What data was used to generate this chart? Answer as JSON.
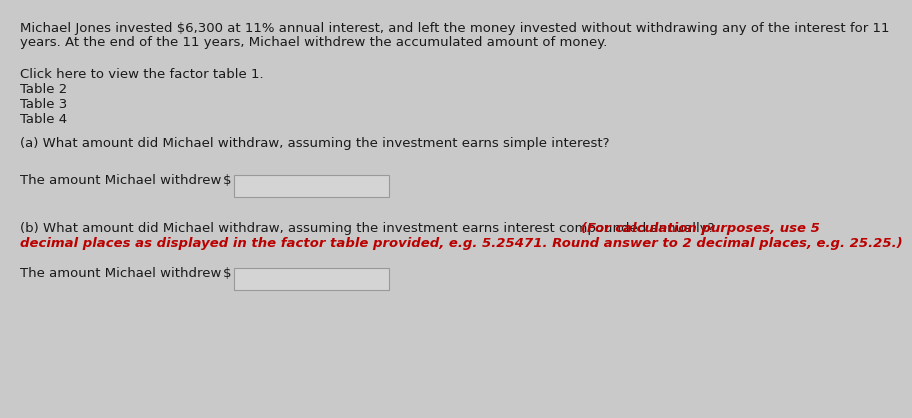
{
  "bg_color": "#c9c9c9",
  "text_color_black": "#1a1a1a",
  "text_color_red": "#bb0000",
  "line1": "Michael Jones invested $6,300 at 11% annual interest, and left the money invested without withdrawing any of the interest for 11",
  "line2": "years. At the end of the 11 years, Michael withdrew the accumulated amount of money.",
  "link1": "Click here to view the factor table 1.",
  "link2": "Table 2",
  "link3": "Table 3",
  "link4": "Table 4",
  "question_a": "(a) What amount did Michael withdraw, assuming the investment earns simple interest?",
  "question_b_black": "(b) What amount did Michael withdraw, assuming the investment earns interest compounded annually? ",
  "question_b_red1": "(For calculation purposes, use 5",
  "question_b_red2": "decimal places as displayed in the factor table provided, e.g. 5.25471. Round answer to 2 decimal places, e.g. 25.25.)",
  "label_a": "The amount Michael withdrew",
  "label_b": "The amount Michael withdrew",
  "dollar_sign": "$",
  "font_size": 9.5,
  "font_size_red": 9.5
}
